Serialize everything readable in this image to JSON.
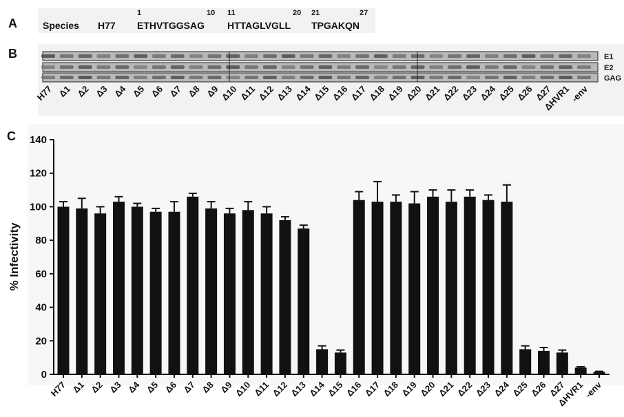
{
  "panel_a": {
    "letter": "A",
    "species_label": "Species",
    "strain": "H77",
    "segments": [
      {
        "start": "1",
        "end": "10",
        "sequence": "ETHVTGGSAG"
      },
      {
        "start": "11",
        "end": "20",
        "sequence": "HTTAGLVGLL"
      },
      {
        "start": "21",
        "end": "27",
        "sequence": "TPGAKQN"
      }
    ]
  },
  "panel_b": {
    "letter": "B",
    "bands": [
      "E1",
      "E2",
      "GAG"
    ],
    "lanes": [
      "H77",
      "Δ1",
      "Δ2",
      "Δ3",
      "Δ4",
      "Δ5",
      "Δ6",
      "Δ7",
      "Δ8",
      "Δ9",
      "Δ10",
      "Δ11",
      "Δ12",
      "Δ13",
      "Δ14",
      "Δ15",
      "Δ16",
      "Δ17",
      "Δ18",
      "Δ19",
      "Δ20",
      "Δ21",
      "Δ22",
      "Δ23",
      "Δ24",
      "Δ25",
      "Δ26",
      "Δ27",
      "ΔHVR1",
      "-env"
    ]
  },
  "chart_data": {
    "type": "bar",
    "letter": "C",
    "y_label": "% Infectivity",
    "categories": [
      "H77",
      "Δ1",
      "Δ2",
      "Δ3",
      "Δ4",
      "Δ5",
      "Δ6",
      "Δ7",
      "Δ8",
      "Δ9",
      "Δ10",
      "Δ11",
      "Δ12",
      "Δ13",
      "Δ14",
      "Δ15",
      "Δ16",
      "Δ17",
      "Δ18",
      "Δ19",
      "Δ20",
      "Δ21",
      "Δ22",
      "Δ23",
      "Δ24",
      "Δ25",
      "Δ26",
      "Δ27",
      "ΔHVR1",
      "-env"
    ],
    "values": [
      100,
      99,
      96,
      103,
      100,
      97,
      97,
      106,
      99,
      96,
      98,
      96,
      92,
      87,
      15,
      13,
      104,
      103,
      103,
      102,
      106,
      103,
      106,
      104,
      103,
      15,
      14,
      13,
      4,
      1.5
    ],
    "errors": [
      3,
      6,
      4,
      3,
      2,
      2,
      6,
      2,
      4,
      3,
      5,
      4,
      2,
      2,
      2,
      1.5,
      5,
      12,
      4,
      7,
      4,
      7,
      4,
      3,
      10,
      2,
      2,
      1.5,
      0.5,
      0.3
    ],
    "color": "#111111",
    "ylim": [
      0,
      140
    ],
    "yticks": [
      0,
      20,
      40,
      60,
      80,
      100,
      120,
      140
    ]
  }
}
